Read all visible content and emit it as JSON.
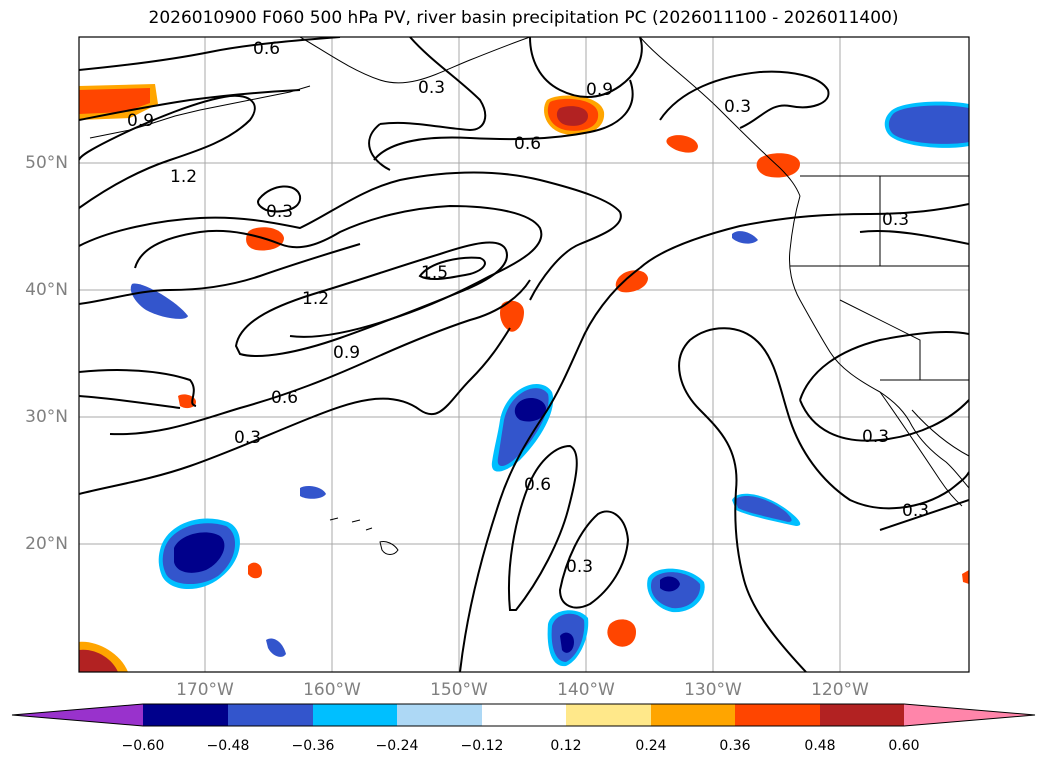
{
  "title": "2026010900 F060 500 hPa PV, river basin precipitation PC (2026011100 - 2026011400)",
  "lat_labels": [
    "50°N",
    "40°N",
    "30°N",
    "20°N"
  ],
  "lon_labels": [
    "170°W",
    "160°W",
    "150°W",
    "140°W",
    "130°W",
    "120°W"
  ],
  "contour_labels": [
    "0.6",
    "0.3",
    "0.9",
    "1.2",
    "0.3",
    "1.5",
    "1.2",
    "0.9",
    "0.6",
    "0.3",
    "0.9",
    "0.3",
    "0.6",
    "0.3",
    "0.6",
    "0.3",
    "0.3",
    "0.3"
  ],
  "colorbar": {
    "ticks": [
      "−0.60",
      "−0.48",
      "−0.36",
      "−0.24",
      "−0.12",
      "0.12",
      "0.24",
      "0.36",
      "0.48",
      "0.60"
    ],
    "colors": [
      "#9932cc",
      "#00008b",
      "#3355cc",
      "#00bfff",
      "#add8f5",
      "#ffffff",
      "#ffe88a",
      "#ffa500",
      "#ff4500",
      "#b22222",
      "#ff85aa"
    ]
  }
}
